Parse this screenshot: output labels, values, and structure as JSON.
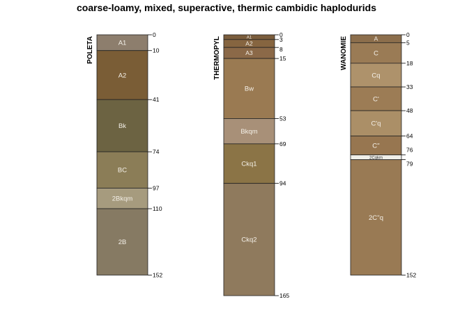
{
  "title": "coarse-loamy, mixed, superactive, thermic cambidic haplodurids",
  "chart_data": {
    "type": "soil-profile",
    "depth_units": "cm",
    "profiles": [
      {
        "name": "POLETA",
        "horizons": [
          {
            "name": "A1",
            "top": 0,
            "bottom": 10,
            "color": "#8d7e6d"
          },
          {
            "name": "A2",
            "top": 10,
            "bottom": 41,
            "color": "#7a5d36"
          },
          {
            "name": "Bk",
            "top": 41,
            "bottom": 74,
            "color": "#6c6342"
          },
          {
            "name": "BC",
            "top": 74,
            "bottom": 97,
            "color": "#8b7d57"
          },
          {
            "name": "2Bkqm",
            "top": 97,
            "bottom": 110,
            "color": "#a69b7e"
          },
          {
            "name": "2B",
            "top": 110,
            "bottom": 152,
            "color": "#867a63"
          }
        ],
        "depth_labels": [
          "0",
          "10",
          "41",
          "74",
          "97",
          "110",
          "152"
        ]
      },
      {
        "name": "THERMOPYL",
        "horizons": [
          {
            "name": "A1",
            "top": 0,
            "bottom": 3,
            "color": "#7a5d3c"
          },
          {
            "name": "A2",
            "top": 3,
            "bottom": 8,
            "color": "#866540"
          },
          {
            "name": "A3",
            "top": 8,
            "bottom": 15,
            "color": "#8b6948"
          },
          {
            "name": "Bw",
            "top": 15,
            "bottom": 53,
            "color": "#9a7a52"
          },
          {
            "name": "Bkqm",
            "top": 53,
            "bottom": 69,
            "color": "#a89078"
          },
          {
            "name": "Ckq1",
            "top": 69,
            "bottom": 94,
            "color": "#8b7446"
          },
          {
            "name": "Ckq2",
            "top": 94,
            "bottom": 165,
            "color": "#8f7a5d"
          }
        ],
        "depth_labels": [
          "0",
          "3",
          "8",
          "15",
          "53",
          "69",
          "94",
          "165"
        ]
      },
      {
        "name": "WANOMIE",
        "horizons": [
          {
            "name": "A",
            "top": 0,
            "bottom": 5,
            "color": "#8c6e4c"
          },
          {
            "name": "C",
            "top": 5,
            "bottom": 18,
            "color": "#9a7b55"
          },
          {
            "name": "Cq",
            "top": 18,
            "bottom": 33,
            "color": "#ae926b"
          },
          {
            "name": "C'",
            "top": 33,
            "bottom": 48,
            "color": "#9c7c55"
          },
          {
            "name": "C'q",
            "top": 48,
            "bottom": 64,
            "color": "#ab8f67"
          },
          {
            "name": "C''",
            "top": 64,
            "bottom": 76,
            "color": "#977650"
          },
          {
            "name": "2Cqkm",
            "top": 76,
            "bottom": 79,
            "color": "#f0efe9"
          },
          {
            "name": "2C''q",
            "top": 79,
            "bottom": 152,
            "color": "#997a54"
          }
        ],
        "depth_labels": [
          "0",
          "5",
          "18",
          "33",
          "48",
          "64",
          "76",
          "79",
          "152"
        ]
      }
    ]
  }
}
